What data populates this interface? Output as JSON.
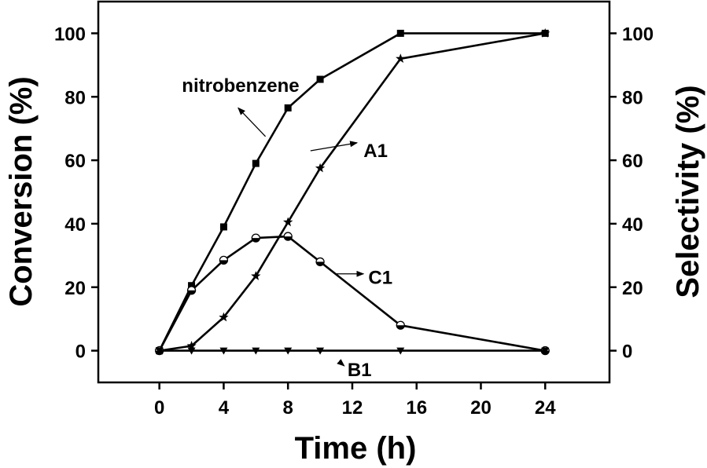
{
  "chart_data": {
    "type": "line",
    "xlabel": "Time (h)",
    "ylabel_left": "Conversion (%)",
    "ylabel_right": "Selectivity (%)",
    "xlim": [
      -3.8,
      28
    ],
    "ylim": [
      -10,
      110
    ],
    "x_ticks": [
      0,
      4,
      8,
      12,
      16,
      20,
      24
    ],
    "y_ticks": [
      0,
      20,
      40,
      60,
      80,
      100
    ],
    "grid": false,
    "series": [
      {
        "name": "nitrobenzene",
        "marker": "square",
        "x": [
          0,
          2,
          4,
          6,
          8,
          10,
          15,
          24
        ],
        "y": [
          0,
          20.5,
          39,
          59,
          76.5,
          85.5,
          100,
          100
        ]
      },
      {
        "name": "A1",
        "marker": "star",
        "x": [
          0,
          2,
          4,
          6,
          8,
          10,
          15,
          24
        ],
        "y": [
          0,
          1.5,
          10.5,
          23.5,
          40.5,
          57.5,
          92,
          100
        ]
      },
      {
        "name": "C1",
        "marker": "half-circle",
        "x": [
          0,
          2,
          4,
          6,
          8,
          10,
          15,
          24
        ],
        "y": [
          0,
          19,
          28.5,
          35.5,
          36,
          28,
          8,
          0
        ]
      },
      {
        "name": "B1",
        "marker": "triangle-down",
        "x": [
          0,
          2,
          4,
          6,
          8,
          10,
          15,
          24
        ],
        "y": [
          0,
          0,
          0,
          0,
          0,
          0,
          0,
          0
        ]
      }
    ],
    "annotations": [
      {
        "text": "nitrobenzene",
        "series": "nitrobenzene",
        "x": 1.4,
        "y": 83.5,
        "arrow_from": [
          6.6,
          67.5
        ],
        "arrow_to": [
          4.9,
          76.5
        ]
      },
      {
        "text": "A1",
        "series": "A1",
        "x": 12.7,
        "y": 63,
        "arrow_from": [
          9.4,
          63
        ],
        "arrow_to": [
          12.3,
          65.5
        ]
      },
      {
        "text": "C1",
        "series": "C1",
        "x": 13.0,
        "y": 23,
        "arrow_from": [
          11.0,
          24.2
        ],
        "arrow_to": [
          12.7,
          24.2
        ]
      },
      {
        "text": "B1",
        "series": "B1",
        "x": 11.7,
        "y": -6,
        "arrow_from": [
          11.2,
          -3.5
        ],
        "arrow_to": [
          11.5,
          -4.8
        ]
      }
    ]
  }
}
